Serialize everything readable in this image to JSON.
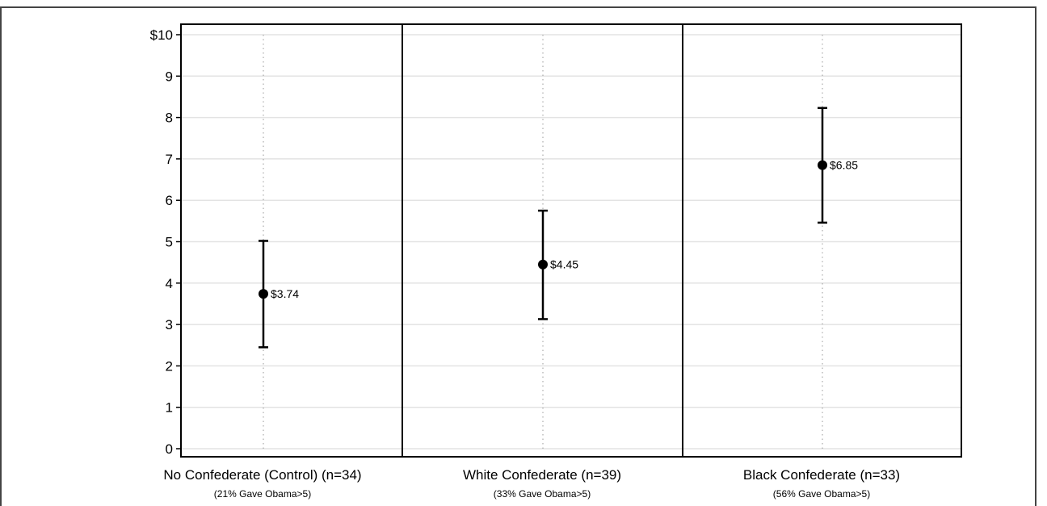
{
  "chart_data": {
    "type": "scatter",
    "subtype": "point-estimate-with-error-bars",
    "ylim": [
      0,
      10
    ],
    "ytick_labels": [
      "0",
      "1",
      "2",
      "3",
      "4",
      "5",
      "6",
      "7",
      "8",
      "9",
      "$10"
    ],
    "grid": "horizontal",
    "panels": [
      {
        "category": "No Confederate (Control) (n=34)",
        "sublabel": "(21% Gave Obama>5)",
        "value": 3.74,
        "lower": 2.45,
        "upper": 5.02,
        "value_label": "$3.74"
      },
      {
        "category": "White Confederate (n=39)",
        "sublabel": "(33% Gave Obama>5)",
        "value": 4.45,
        "lower": 3.13,
        "upper": 5.75,
        "value_label": "$4.45"
      },
      {
        "category": "Black Confederate (n=33)",
        "sublabel": "(56% Gave Obama>5)",
        "value": 6.85,
        "lower": 5.46,
        "upper": 8.23,
        "value_label": "$6.85"
      }
    ],
    "colors": {
      "marker": "#000000",
      "grid": "#e3e3e3",
      "axis": "#000000",
      "guide": "#999999"
    }
  }
}
